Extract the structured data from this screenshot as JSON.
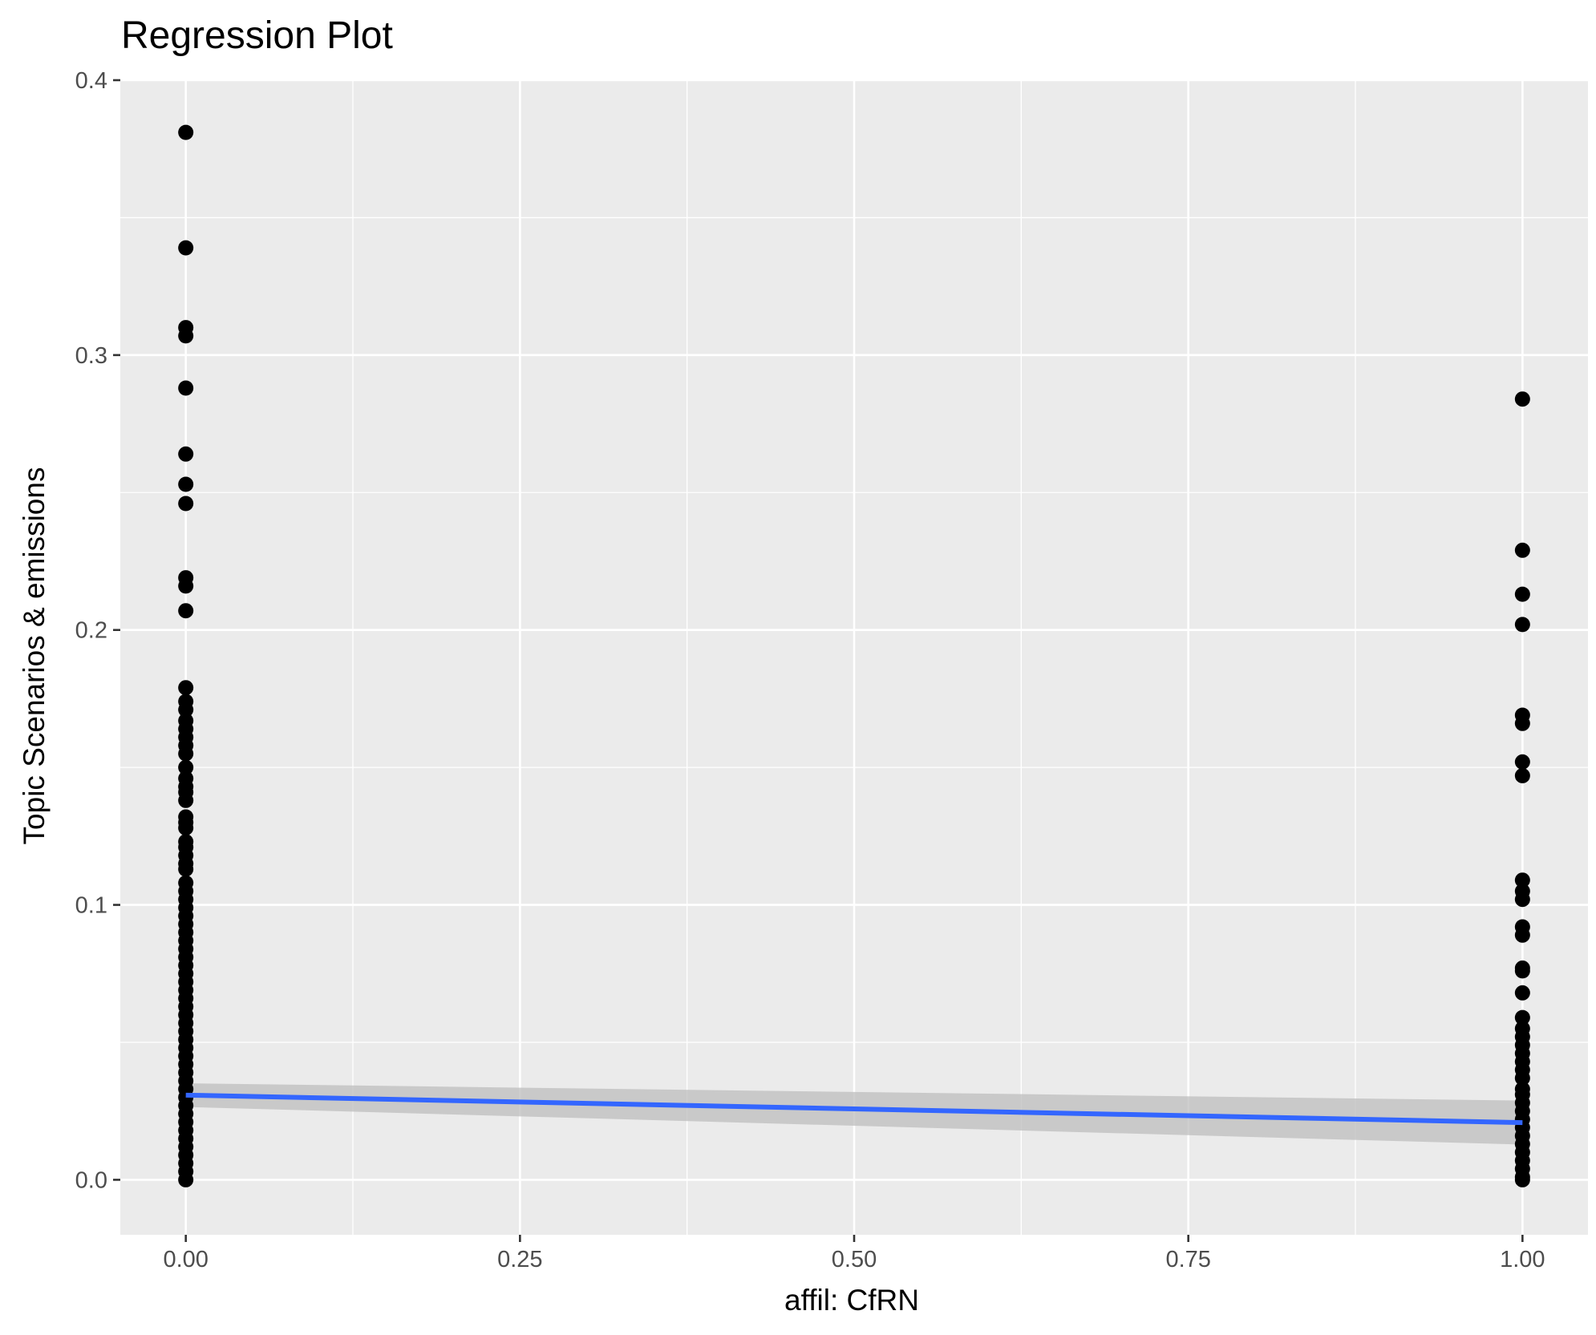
{
  "chart_data": {
    "type": "scatter",
    "title": "Regression Plot",
    "xlabel": "affil: CfRN",
    "ylabel": "Topic Scenarios & emissions",
    "xlim": [
      -0.049,
      1.049
    ],
    "ylim": [
      -0.02,
      0.4
    ],
    "x_ticks": [
      {
        "value": 0.0,
        "label": "0.00"
      },
      {
        "value": 0.25,
        "label": "0.25"
      },
      {
        "value": 0.5,
        "label": "0.50"
      },
      {
        "value": 0.75,
        "label": "0.75"
      },
      {
        "value": 1.0,
        "label": "1.00"
      }
    ],
    "y_ticks": [
      {
        "value": 0.0,
        "label": "0.0"
      },
      {
        "value": 0.1,
        "label": "0.1"
      },
      {
        "value": 0.2,
        "label": "0.2"
      },
      {
        "value": 0.3,
        "label": "0.3"
      },
      {
        "value": 0.4,
        "label": "0.4"
      }
    ],
    "grid": true,
    "series": [
      {
        "kind": "points",
        "x": 0,
        "y": [
          0.381,
          0.339,
          0.31,
          0.307,
          0.288,
          0.264,
          0.253,
          0.246,
          0.219,
          0.216,
          0.207,
          0.179,
          0.174,
          0.171,
          0.167,
          0.164,
          0.161,
          0.158,
          0.155,
          0.15,
          0.146,
          0.143,
          0.141,
          0.138,
          0.132,
          0.13,
          0.128,
          0.123,
          0.121,
          0.118,
          0.115,
          0.113,
          0.108,
          0.105,
          0.102,
          0.099,
          0.096,
          0.093,
          0.09,
          0.087,
          0.084,
          0.081,
          0.078,
          0.075,
          0.072,
          0.069,
          0.066,
          0.063,
          0.06,
          0.057,
          0.054,
          0.051,
          0.048,
          0.045,
          0.042,
          0.039,
          0.036,
          0.033,
          0.03,
          0.027,
          0.024,
          0.021,
          0.018,
          0.015,
          0.012,
          0.009,
          0.006,
          0.003,
          0.0
        ]
      },
      {
        "kind": "points",
        "x": 1,
        "y": [
          0.284,
          0.229,
          0.213,
          0.202,
          0.169,
          0.166,
          0.152,
          0.147,
          0.109,
          0.105,
          0.102,
          0.092,
          0.089,
          0.077,
          0.076,
          0.068,
          0.059,
          0.055,
          0.052,
          0.049,
          0.046,
          0.043,
          0.04,
          0.037,
          0.033,
          0.031,
          0.028,
          0.025,
          0.022,
          0.019,
          0.016,
          0.013,
          0.01,
          0.007,
          0.004,
          0.001,
          0.0
        ]
      }
    ],
    "regression": {
      "x": [
        0,
        1
      ],
      "y": [
        0.0308,
        0.0208
      ],
      "ci_lower": [
        0.0265,
        0.0128
      ],
      "ci_upper": [
        0.0351,
        0.0288
      ],
      "color": "#3366ff"
    },
    "colors": {
      "panel": "#ebebeb",
      "grid": "#ffffff",
      "points": "#000000",
      "ribbon": "#bdbdbd"
    }
  }
}
